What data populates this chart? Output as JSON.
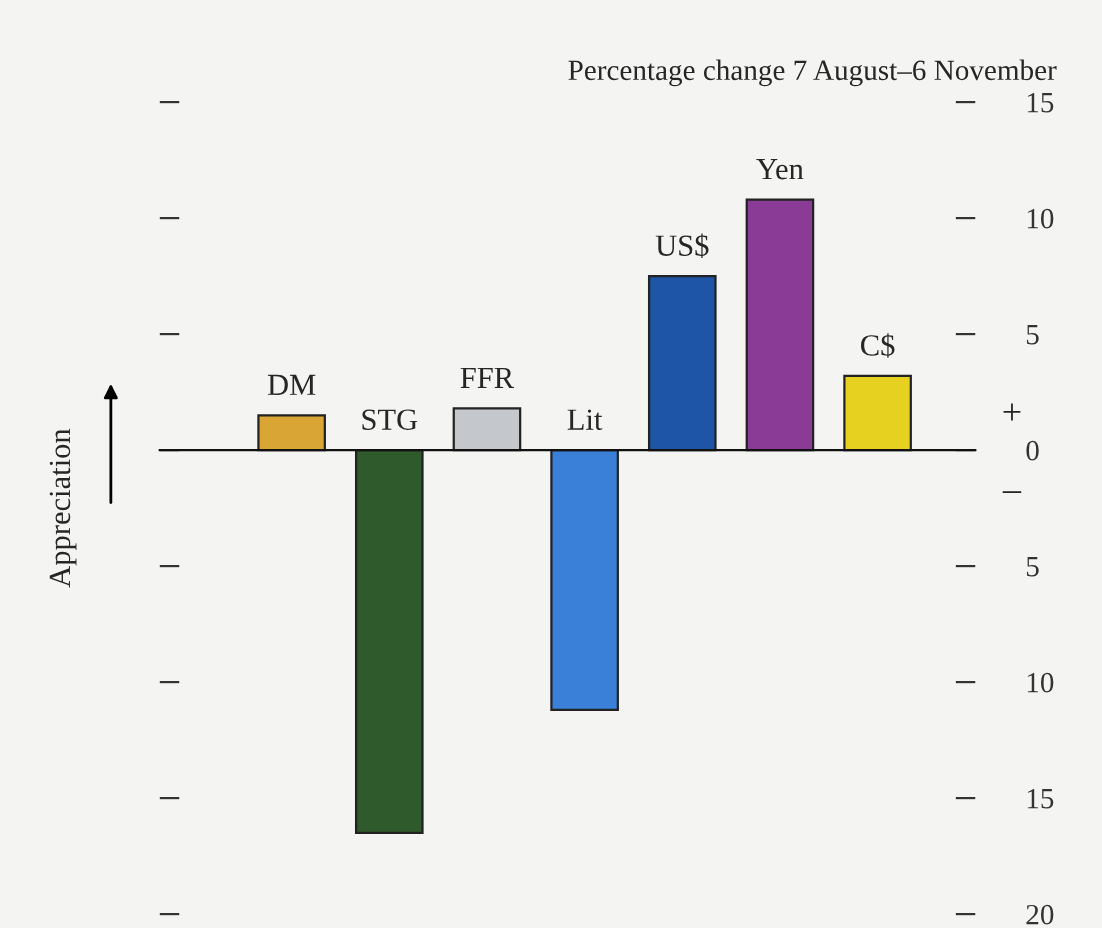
{
  "chart_data": {
    "type": "bar",
    "title": "Percentage change 7 August–6 November",
    "ylabel": "Appreciation",
    "categories": [
      "DM",
      "STG",
      "FFR",
      "Lit",
      "US$",
      "Yen",
      "C$"
    ],
    "values": [
      1.5,
      -16.5,
      1.8,
      -11.2,
      7.5,
      10.8,
      3.2
    ],
    "colors": [
      "#d9a535",
      "#2f5a2c",
      "#c4c8cc",
      "#3a7fd8",
      "#1f55a6",
      "#8a3b96",
      "#e6d020"
    ],
    "ylim": [
      -20,
      15
    ],
    "yticks": [
      {
        "value": -20,
        "label": "20"
      },
      {
        "value": -15,
        "label": "15"
      },
      {
        "value": -10,
        "label": "10"
      },
      {
        "value": -5,
        "label": "5"
      },
      0,
      5,
      10,
      15
    ],
    "annotations": [
      "+",
      "–"
    ],
    "grid": false,
    "legend": false
  }
}
